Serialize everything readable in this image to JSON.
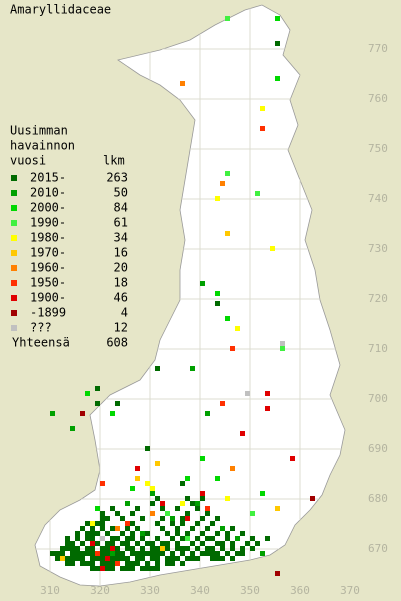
{
  "title": "Amaryllidaceae",
  "legend": {
    "heading": [
      "Uusimman",
      "havainnon",
      "vuosi"
    ],
    "count_heading": "lkm",
    "rows": [
      {
        "label": "2015-",
        "count": 263,
        "color": "#006a00",
        "squares": [
          [
            318,
            666
          ],
          [
            319,
            666
          ],
          [
            320,
            666
          ],
          [
            321,
            666
          ],
          [
            322,
            666
          ],
          [
            324,
            666
          ],
          [
            325,
            666
          ],
          [
            326,
            666
          ],
          [
            328,
            666
          ],
          [
            329,
            666
          ],
          [
            330,
            666
          ],
          [
            331,
            666
          ],
          [
            313,
            667
          ],
          [
            314,
            667
          ],
          [
            316,
            667
          ],
          [
            317,
            667
          ],
          [
            318,
            667
          ],
          [
            320,
            667
          ],
          [
            321,
            667
          ],
          [
            322,
            667
          ],
          [
            325,
            667
          ],
          [
            326,
            667
          ],
          [
            327,
            667
          ],
          [
            329,
            667
          ],
          [
            331,
            667
          ],
          [
            333,
            667
          ],
          [
            334,
            667
          ],
          [
            336,
            667
          ],
          [
            311,
            668
          ],
          [
            312,
            668
          ],
          [
            313,
            668
          ],
          [
            314,
            668
          ],
          [
            315,
            668
          ],
          [
            316,
            668
          ],
          [
            318,
            668
          ],
          [
            319,
            668
          ],
          [
            320,
            668
          ],
          [
            322,
            668
          ],
          [
            323,
            668
          ],
          [
            324,
            668
          ],
          [
            325,
            668
          ],
          [
            327,
            668
          ],
          [
            328,
            668
          ],
          [
            330,
            668
          ],
          [
            331,
            668
          ],
          [
            333,
            668
          ],
          [
            334,
            668
          ],
          [
            335,
            668
          ],
          [
            337,
            668
          ],
          [
            338,
            668
          ],
          [
            339,
            668
          ],
          [
            342,
            668
          ],
          [
            343,
            668
          ],
          [
            344,
            668
          ],
          [
            346,
            668
          ],
          [
            310,
            669
          ],
          [
            311,
            669
          ],
          [
            312,
            669
          ],
          [
            314,
            669
          ],
          [
            315,
            669
          ],
          [
            316,
            669
          ],
          [
            317,
            669
          ],
          [
            318,
            669
          ],
          [
            320,
            669
          ],
          [
            321,
            669
          ],
          [
            323,
            669
          ],
          [
            324,
            669
          ],
          [
            326,
            669
          ],
          [
            327,
            669
          ],
          [
            328,
            669
          ],
          [
            329,
            669
          ],
          [
            330,
            669
          ],
          [
            331,
            669
          ],
          [
            332,
            669
          ],
          [
            334,
            669
          ],
          [
            336,
            669
          ],
          [
            338,
            669
          ],
          [
            340,
            669
          ],
          [
            341,
            669
          ],
          [
            342,
            669
          ],
          [
            343,
            669
          ],
          [
            345,
            669
          ],
          [
            347,
            669
          ],
          [
            348,
            669
          ],
          [
            312,
            670
          ],
          [
            313,
            670
          ],
          [
            314,
            670
          ],
          [
            315,
            670
          ],
          [
            317,
            670
          ],
          [
            318,
            670
          ],
          [
            320,
            670
          ],
          [
            321,
            670
          ],
          [
            323,
            670
          ],
          [
            325,
            670
          ],
          [
            326,
            670
          ],
          [
            328,
            670
          ],
          [
            330,
            670
          ],
          [
            331,
            670
          ],
          [
            333,
            670
          ],
          [
            335,
            670
          ],
          [
            336,
            670
          ],
          [
            337,
            670
          ],
          [
            339,
            670
          ],
          [
            341,
            670
          ],
          [
            342,
            670
          ],
          [
            344,
            670
          ],
          [
            346,
            670
          ],
          [
            348,
            670
          ],
          [
            350,
            670
          ],
          [
            313,
            671
          ],
          [
            314,
            671
          ],
          [
            316,
            671
          ],
          [
            319,
            671
          ],
          [
            321,
            671
          ],
          [
            322,
            671
          ],
          [
            324,
            671
          ],
          [
            325,
            671
          ],
          [
            327,
            671
          ],
          [
            329,
            671
          ],
          [
            330,
            671
          ],
          [
            332,
            671
          ],
          [
            333,
            671
          ],
          [
            335,
            671
          ],
          [
            338,
            671
          ],
          [
            340,
            671
          ],
          [
            343,
            671
          ],
          [
            344,
            671
          ],
          [
            346,
            671
          ],
          [
            349,
            671
          ],
          [
            351,
            671
          ],
          [
            313,
            672
          ],
          [
            315,
            672
          ],
          [
            317,
            672
          ],
          [
            318,
            672
          ],
          [
            322,
            672
          ],
          [
            323,
            672
          ],
          [
            325,
            672
          ],
          [
            326,
            672
          ],
          [
            328,
            672
          ],
          [
            331,
            672
          ],
          [
            334,
            672
          ],
          [
            336,
            672
          ],
          [
            339,
            672
          ],
          [
            341,
            672
          ],
          [
            342,
            672
          ],
          [
            345,
            672
          ],
          [
            347,
            672
          ],
          [
            350,
            672
          ],
          [
            353,
            672
          ],
          [
            315,
            673
          ],
          [
            317,
            673
          ],
          [
            318,
            673
          ],
          [
            319,
            673
          ],
          [
            321,
            673
          ],
          [
            324,
            673
          ],
          [
            326,
            673
          ],
          [
            329,
            673
          ],
          [
            333,
            673
          ],
          [
            335,
            673
          ],
          [
            337,
            673
          ],
          [
            340,
            673
          ],
          [
            343,
            673
          ],
          [
            345,
            673
          ],
          [
            348,
            673
          ],
          [
            316,
            674
          ],
          [
            318,
            674
          ],
          [
            320,
            674
          ],
          [
            322,
            674
          ],
          [
            325,
            674
          ],
          [
            327,
            674
          ],
          [
            332,
            674
          ],
          [
            335,
            674
          ],
          [
            338,
            674
          ],
          [
            341,
            674
          ],
          [
            344,
            674
          ],
          [
            346,
            674
          ],
          [
            317,
            675
          ],
          [
            319,
            675
          ],
          [
            320,
            675
          ],
          [
            326,
            675
          ],
          [
            331,
            675
          ],
          [
            334,
            675
          ],
          [
            336,
            675
          ],
          [
            339,
            675
          ],
          [
            342,
            675
          ],
          [
            320,
            676
          ],
          [
            321,
            676
          ],
          [
            324,
            676
          ],
          [
            328,
            676
          ],
          [
            332,
            676
          ],
          [
            336,
            676
          ],
          [
            340,
            676
          ],
          [
            343,
            676
          ],
          [
            320,
            677
          ],
          [
            323,
            677
          ],
          [
            326,
            677
          ],
          [
            333,
            677
          ],
          [
            337,
            677
          ],
          [
            341,
            677
          ],
          [
            322,
            678
          ],
          [
            327,
            678
          ],
          [
            332,
            678
          ],
          [
            335,
            678
          ],
          [
            339,
            678
          ],
          [
            330,
            679
          ],
          [
            336,
            679
          ],
          [
            338,
            679
          ],
          [
            331,
            680
          ],
          [
            337,
            680
          ],
          [
            340,
            680
          ],
          [
            336,
            683
          ],
          [
            329,
            690
          ],
          [
            319,
            699
          ],
          [
            323,
            699
          ],
          [
            319,
            702
          ],
          [
            331,
            706
          ],
          [
            343,
            719
          ],
          [
            355,
            771
          ]
        ]
      },
      {
        "label": "2010-",
        "count": 50,
        "color": "#00a000",
        "squares": [
          [
            325,
            679
          ],
          [
            330,
            681
          ],
          [
            334,
            676
          ],
          [
            339,
            679
          ],
          [
            344,
            674
          ],
          [
            347,
            672
          ],
          [
            322,
            669
          ],
          [
            328,
            673
          ],
          [
            352,
            669
          ],
          [
            341,
            697
          ],
          [
            340,
            723
          ],
          [
            338,
            706
          ],
          [
            310,
            697
          ],
          [
            314,
            694
          ]
        ]
      },
      {
        "label": "2000-",
        "count": 84,
        "color": "#00d800",
        "squares": [
          [
            322,
            697
          ],
          [
            316,
            697
          ],
          [
            345,
            716
          ],
          [
            343,
            721
          ],
          [
            317,
            701
          ],
          [
            340,
            688
          ],
          [
            352,
            681
          ],
          [
            355,
            776
          ],
          [
            355,
            764
          ],
          [
            343,
            684
          ],
          [
            326,
            682
          ],
          [
            337,
            684
          ],
          [
            319,
            678
          ]
        ]
      },
      {
        "label": "1990-",
        "count": 61,
        "color": "#40f040",
        "squares": [
          [
            351,
            741
          ],
          [
            345,
            776
          ],
          [
            345,
            745
          ],
          [
            356,
            710
          ],
          [
            350,
            677
          ],
          [
            337,
            672
          ],
          [
            333,
            677
          ]
        ]
      },
      {
        "label": "1980-",
        "count": 34,
        "color": "#ffff00",
        "squares": [
          [
            352,
            758
          ],
          [
            343,
            740
          ],
          [
            354,
            730
          ],
          [
            347,
            714
          ],
          [
            330,
            682
          ],
          [
            329,
            683
          ],
          [
            345,
            680
          ],
          [
            318,
            675
          ],
          [
            336,
            679
          ]
        ]
      },
      {
        "label": "1970-",
        "count": 16,
        "color": "#ffc800",
        "squares": [
          [
            331,
            687
          ],
          [
            355,
            678
          ],
          [
            345,
            733
          ],
          [
            327,
            684
          ],
          [
            332,
            670
          ],
          [
            312,
            668
          ]
        ]
      },
      {
        "label": "1960-",
        "count": 20,
        "color": "#ff8000",
        "squares": [
          [
            336,
            763
          ],
          [
            344,
            743
          ],
          [
            346,
            686
          ],
          [
            323,
            674
          ],
          [
            330,
            677
          ]
        ]
      },
      {
        "label": "1950-",
        "count": 18,
        "color": "#ff3000",
        "squares": [
          [
            352,
            754
          ],
          [
            346,
            710
          ],
          [
            344,
            699
          ],
          [
            320,
            683
          ],
          [
            341,
            678
          ],
          [
            323,
            667
          ],
          [
            319,
            669
          ],
          [
            325,
            675
          ]
        ]
      },
      {
        "label": "1900-",
        "count": 46,
        "color": "#e00000",
        "squares": [
          [
            353,
            701
          ],
          [
            353,
            698
          ],
          [
            358,
            688
          ],
          [
            348,
            693
          ],
          [
            327,
            686
          ],
          [
            321,
            668
          ],
          [
            320,
            666
          ],
          [
            322,
            670
          ],
          [
            318,
            671
          ],
          [
            337,
            676
          ],
          [
            340,
            681
          ],
          [
            332,
            679
          ]
        ]
      },
      {
        "label": "-1899",
        "count": 4,
        "color": "#a00000",
        "squares": [
          [
            362,
            680
          ],
          [
            316,
            697
          ],
          [
            355,
            665
          ]
        ]
      },
      {
        "label": "???",
        "count": 12,
        "color": "#c0c0c0",
        "squares": [
          [
            356,
            711
          ],
          [
            349,
            701
          ],
          [
            320,
            672
          ]
        ]
      }
    ],
    "total": {
      "label": "Yhteensä",
      "count": 608
    }
  },
  "axes": {
    "y_ticks": [
      670,
      680,
      690,
      700,
      710,
      720,
      730,
      740,
      750,
      760,
      770
    ],
    "x_ticks": [
      310,
      320,
      330,
      340,
      350,
      360,
      370
    ]
  }
}
